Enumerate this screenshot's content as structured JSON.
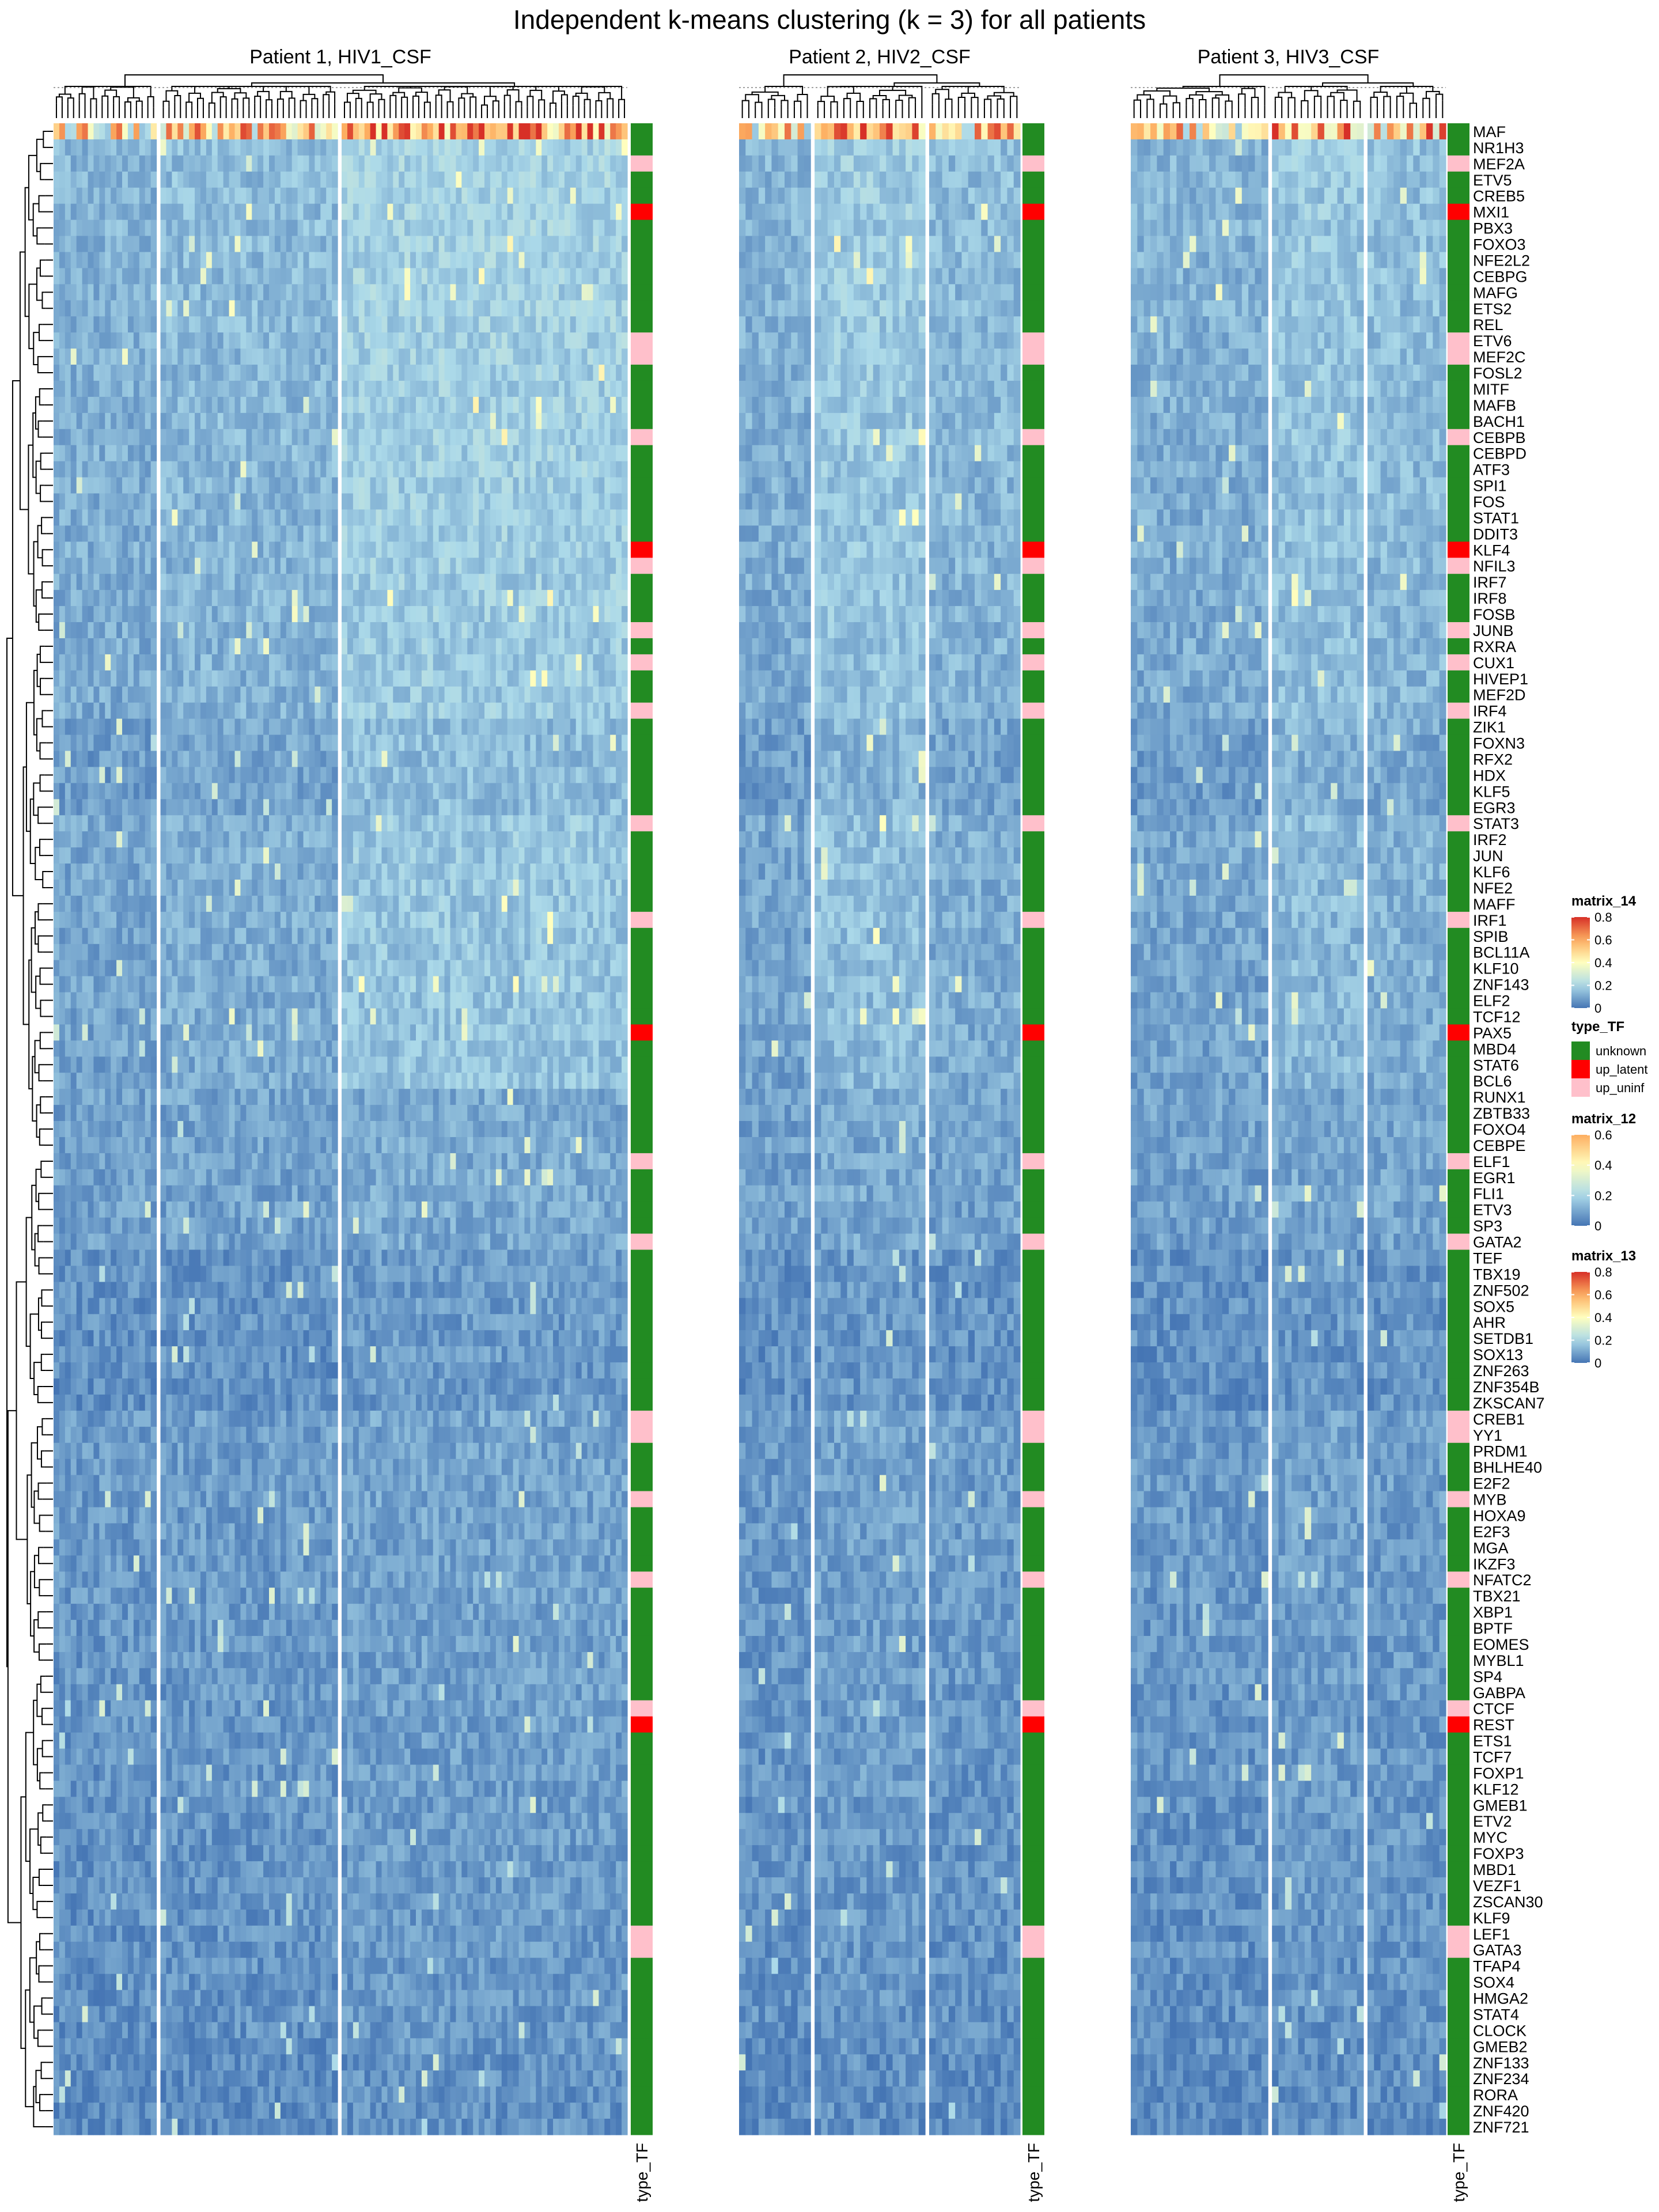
{
  "title": "Independent k-means clustering (k = 3) for all patients",
  "chart_data": {
    "type": "heatmap",
    "title": "Independent k-means clustering (k = 3) for all patients",
    "row_labels": [
      "MAF",
      "NR1H3",
      "MEF2A",
      "ETV5",
      "CREB5",
      "MXI1",
      "PBX3",
      "FOXO3",
      "NFE2L2",
      "CEBPG",
      "MAFG",
      "ETS2",
      "REL",
      "ETV6",
      "MEF2C",
      "FOSL2",
      "MITF",
      "MAFB",
      "BACH1",
      "CEBPB",
      "CEBPD",
      "ATF3",
      "SPI1",
      "FOS",
      "STAT1",
      "DDIT3",
      "KLF4",
      "NFIL3",
      "IRF7",
      "IRF8",
      "FOSB",
      "JUNB",
      "RXRA",
      "CUX1",
      "HIVEP1",
      "MEF2D",
      "IRF4",
      "ZIK1",
      "FOXN3",
      "RFX2",
      "HDX",
      "KLF5",
      "EGR3",
      "STAT3",
      "IRF2",
      "JUN",
      "KLF6",
      "NFE2",
      "MAFF",
      "IRF1",
      "SPIB",
      "BCL11A",
      "KLF10",
      "ZNF143",
      "ELF2",
      "TCF12",
      "PAX5",
      "MBD4",
      "STAT6",
      "BCL6",
      "RUNX1",
      "ZBTB33",
      "FOXO4",
      "CEBPE",
      "ELF1",
      "EGR1",
      "FLI1",
      "ETV3",
      "SP3",
      "GATA2",
      "TEF",
      "TBX19",
      "ZNF502",
      "SOX5",
      "AHR",
      "SETDB1",
      "SOX13",
      "ZNF263",
      "ZNF354B",
      "ZKSCAN7",
      "CREB1",
      "YY1",
      "PRDM1",
      "BHLHE40",
      "E2F2",
      "MYB",
      "HOXA9",
      "E2F3",
      "MGA",
      "IKZF3",
      "NFATC2",
      "TBX21",
      "XBP1",
      "BPTF",
      "EOMES",
      "MYBL1",
      "SP4",
      "GABPA",
      "CTCF",
      "REST",
      "ETS1",
      "TCF7",
      "FOXP1",
      "KLF12",
      "GMEB1",
      "ETV2",
      "MYC",
      "FOXP3",
      "MBD1",
      "VEZF1",
      "ZSCAN30",
      "KLF9",
      "LEF1",
      "GATA3",
      "TFAP4",
      "SOX4",
      "HMGA2",
      "STAT4",
      "CLOCK",
      "GMEB2",
      "ZNF133",
      "ZNF234",
      "RORA",
      "ZNF420",
      "ZNF721"
    ],
    "row_types": [
      "unknown",
      "unknown",
      "up_uninf",
      "unknown",
      "unknown",
      "up_latent",
      "unknown",
      "unknown",
      "unknown",
      "unknown",
      "unknown",
      "unknown",
      "unknown",
      "up_uninf",
      "up_uninf",
      "unknown",
      "unknown",
      "unknown",
      "unknown",
      "up_uninf",
      "unknown",
      "unknown",
      "unknown",
      "unknown",
      "unknown",
      "unknown",
      "up_latent",
      "up_uninf",
      "unknown",
      "unknown",
      "unknown",
      "up_uninf",
      "unknown",
      "up_uninf",
      "unknown",
      "unknown",
      "up_uninf",
      "unknown",
      "unknown",
      "unknown",
      "unknown",
      "unknown",
      "unknown",
      "up_uninf",
      "unknown",
      "unknown",
      "unknown",
      "unknown",
      "unknown",
      "up_uninf",
      "unknown",
      "unknown",
      "unknown",
      "unknown",
      "unknown",
      "unknown",
      "up_latent",
      "unknown",
      "unknown",
      "unknown",
      "unknown",
      "unknown",
      "unknown",
      "unknown",
      "up_uninf",
      "unknown",
      "unknown",
      "unknown",
      "unknown",
      "up_uninf",
      "unknown",
      "unknown",
      "unknown",
      "unknown",
      "unknown",
      "unknown",
      "unknown",
      "unknown",
      "unknown",
      "unknown",
      "up_uninf",
      "up_uninf",
      "unknown",
      "unknown",
      "unknown",
      "up_uninf",
      "unknown",
      "unknown",
      "unknown",
      "unknown",
      "up_uninf",
      "unknown",
      "unknown",
      "unknown",
      "unknown",
      "unknown",
      "unknown",
      "unknown",
      "up_uninf",
      "up_latent",
      "unknown",
      "unknown",
      "unknown",
      "unknown",
      "unknown",
      "unknown",
      "unknown",
      "unknown",
      "unknown",
      "unknown",
      "unknown",
      "unknown",
      "up_uninf",
      "up_uninf",
      "unknown",
      "unknown",
      "unknown",
      "unknown",
      "unknown",
      "unknown",
      "unknown",
      "unknown",
      "unknown",
      "unknown",
      "unknown"
    ],
    "panels": [
      {
        "title": "Patient 1, HIV1_CSF",
        "annotation_label": "type_TF",
        "legend": "matrix_14",
        "cluster_columns": [
          18,
          31,
          50
        ]
      },
      {
        "title": "Patient 2, HIV2_CSF",
        "annotation_label": "type_TF",
        "legend": "matrix_12",
        "cluster_columns": [
          11,
          17,
          14
        ]
      },
      {
        "title": "Patient 3, HIV3_CSF",
        "annotation_label": "type_TF",
        "legend": "matrix_13",
        "cluster_columns": [
          21,
          14,
          12
        ]
      }
    ],
    "legends": [
      {
        "title": "matrix_14",
        "ticks": [
          "0.8",
          "0.6",
          "0.4",
          "0.2",
          "0"
        ],
        "range": [
          0,
          0.8
        ]
      },
      {
        "title": "type_TF",
        "entries": [
          "unknown",
          "up_latent",
          "up_uninf"
        ]
      },
      {
        "title": "matrix_12",
        "ticks": [
          "0.6",
          "0.4",
          "0.2",
          "0"
        ],
        "range": [
          0,
          0.6
        ]
      },
      {
        "title": "matrix_13",
        "ticks": [
          "0.8",
          "0.6",
          "0.4",
          "0.2",
          "0"
        ],
        "range": [
          0,
          0.8
        ]
      }
    ],
    "colors": {
      "unknown": "#228B22",
      "up_latent": "#FF0000",
      "up_uninf": "#FFC0CB",
      "scale": [
        "#4575B4",
        "#ABD9E9",
        "#FFFFBF",
        "#FDAE61",
        "#D73027"
      ]
    }
  }
}
